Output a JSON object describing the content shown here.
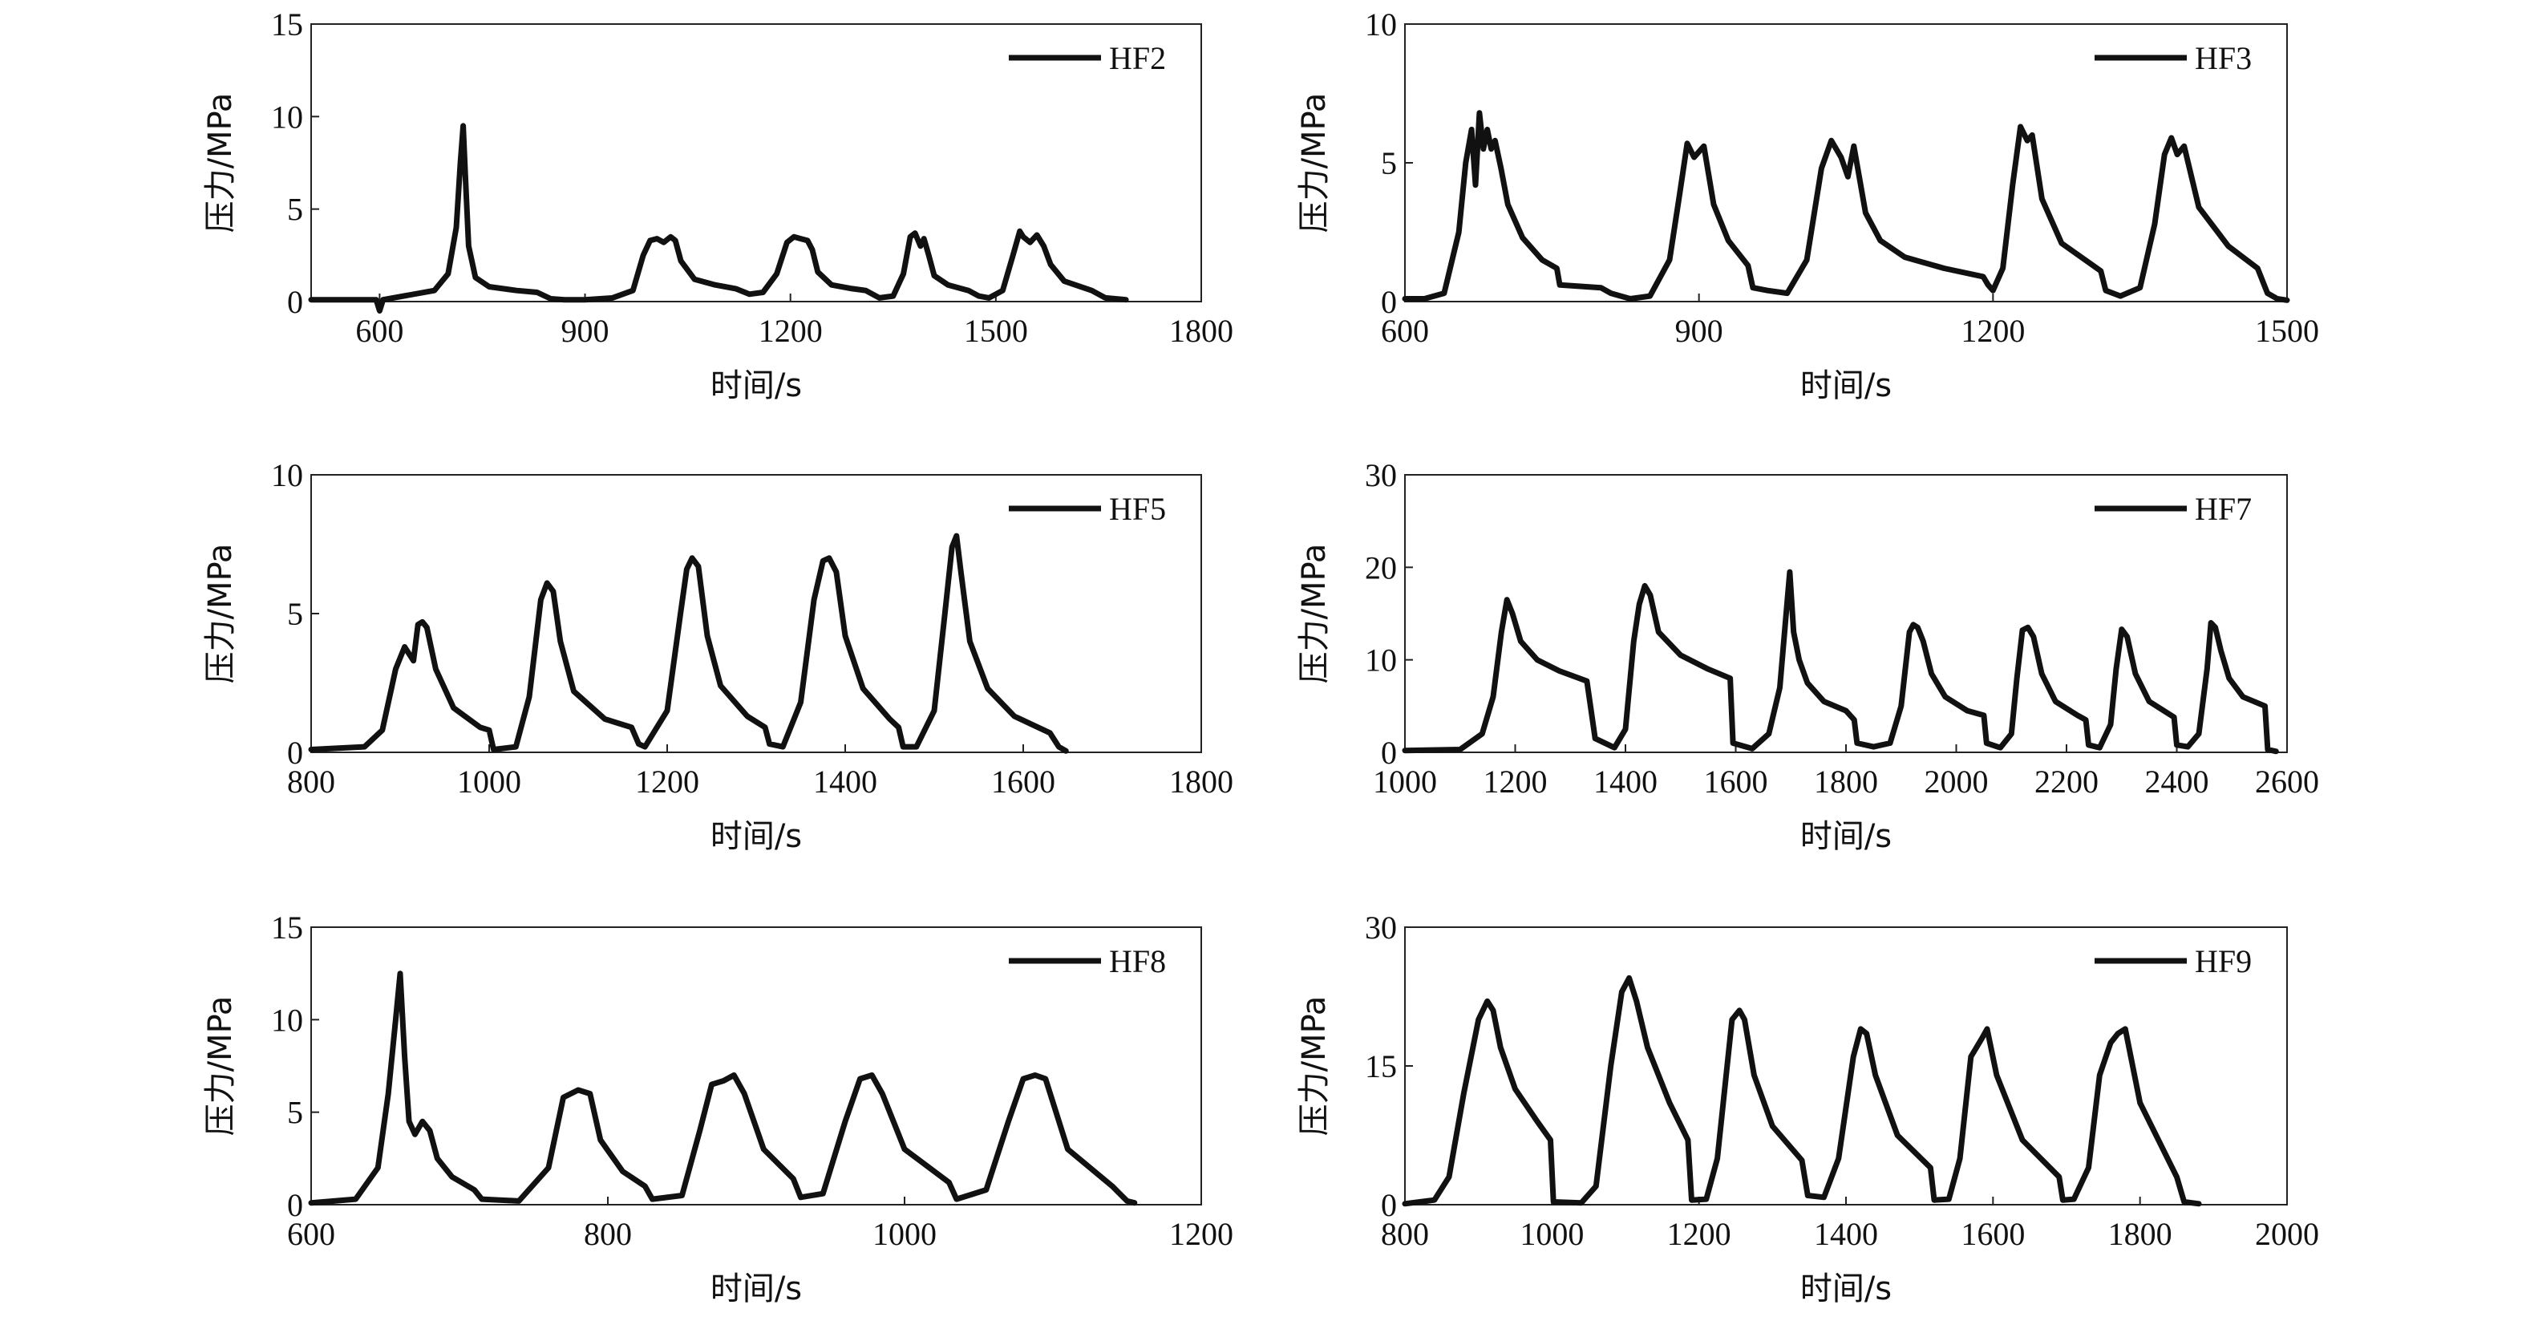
{
  "chart_data": [
    {
      "type": "line",
      "xlabel": "时间/s",
      "ylabel": "压力/MPa",
      "xlim": [
        500,
        1800
      ],
      "ylim": [
        0,
        15
      ],
      "xticks": [
        600,
        900,
        1200,
        1500,
        1800
      ],
      "yticks": [
        0,
        5,
        10,
        15
      ],
      "series": [
        {
          "name": "HF2",
          "color": "#111111",
          "x": [
            500,
            580,
            595,
            600,
            605,
            680,
            700,
            712,
            718,
            722,
            725,
            730,
            740,
            760,
            800,
            830,
            850,
            870,
            900,
            940,
            970,
            985,
            995,
            1005,
            1015,
            1025,
            1032,
            1040,
            1060,
            1090,
            1120,
            1140,
            1160,
            1180,
            1195,
            1205,
            1215,
            1225,
            1232,
            1240,
            1260,
            1290,
            1310,
            1330,
            1350,
            1365,
            1375,
            1382,
            1390,
            1395,
            1402,
            1410,
            1430,
            1460,
            1475,
            1490,
            1510,
            1525,
            1535,
            1540,
            1550,
            1560,
            1570,
            1580,
            1600,
            1640,
            1660,
            1690
          ],
          "values": [
            0.1,
            0.1,
            0.1,
            -0.5,
            0.1,
            0.6,
            1.5,
            4,
            7.5,
            9.5,
            7,
            3,
            1.3,
            0.8,
            0.6,
            0.5,
            0.15,
            0.1,
            0.1,
            0.2,
            0.6,
            2.5,
            3.3,
            3.4,
            3.2,
            3.5,
            3.3,
            2.2,
            1.2,
            0.9,
            0.7,
            0.4,
            0.5,
            1.5,
            3.2,
            3.5,
            3.4,
            3.3,
            2.8,
            1.6,
            0.9,
            0.7,
            0.6,
            0.2,
            0.3,
            1.5,
            3.5,
            3.7,
            3,
            3.4,
            2.5,
            1.4,
            0.9,
            0.6,
            0.3,
            0.2,
            0.6,
            2.5,
            3.8,
            3.5,
            3.2,
            3.6,
            3,
            2,
            1.1,
            0.6,
            0.2,
            0.1
          ]
        }
      ]
    },
    {
      "type": "line",
      "xlabel": "时间/s",
      "ylabel": "压力/MPa",
      "xlim": [
        600,
        1500
      ],
      "ylim": [
        0,
        10
      ],
      "xticks": [
        600,
        900,
        1200,
        1500
      ],
      "yticks": [
        0,
        5,
        10
      ],
      "series": [
        {
          "name": "HF3",
          "color": "#111111",
          "x": [
            600,
            620,
            640,
            655,
            662,
            668,
            672,
            676,
            680,
            684,
            688,
            692,
            698,
            705,
            720,
            740,
            755,
            758,
            800,
            810,
            830,
            850,
            870,
            880,
            888,
            895,
            905,
            915,
            930,
            950,
            955,
            970,
            990,
            1010,
            1025,
            1035,
            1045,
            1052,
            1058,
            1063,
            1070,
            1085,
            1110,
            1150,
            1190,
            1195,
            1200,
            1210,
            1220,
            1228,
            1235,
            1240,
            1250,
            1270,
            1310,
            1315,
            1330,
            1350,
            1365,
            1375,
            1382,
            1388,
            1395,
            1410,
            1440,
            1470,
            1480,
            1490,
            1500
          ],
          "values": [
            0.1,
            0.1,
            0.3,
            2.5,
            5,
            6.2,
            4.2,
            6.8,
            5.5,
            6.2,
            5.5,
            5.8,
            4.8,
            3.5,
            2.3,
            1.5,
            1.2,
            0.6,
            0.5,
            0.3,
            0.1,
            0.2,
            1.5,
            3.8,
            5.7,
            5.2,
            5.6,
            3.5,
            2.2,
            1.3,
            0.5,
            0.4,
            0.3,
            1.5,
            4.8,
            5.8,
            5.2,
            4.5,
            5.6,
            4.6,
            3.2,
            2.2,
            1.6,
            1.2,
            0.9,
            0.6,
            0.4,
            1.2,
            4.2,
            6.3,
            5.8,
            6,
            3.7,
            2.1,
            1.1,
            0.4,
            0.2,
            0.5,
            2.8,
            5.3,
            5.9,
            5.3,
            5.6,
            3.4,
            2,
            1.2,
            0.3,
            0.1,
            0.05
          ]
        }
      ]
    },
    {
      "type": "line",
      "xlabel": "时间/s",
      "ylabel": "压力/MPa",
      "xlim": [
        800,
        1800
      ],
      "ylim": [
        0,
        10
      ],
      "xticks": [
        800,
        1000,
        1200,
        1400,
        1600,
        1800
      ],
      "yticks": [
        0,
        5,
        10
      ],
      "series": [
        {
          "name": "HF5",
          "color": "#111111",
          "x": [
            800,
            860,
            880,
            895,
            905,
            915,
            920,
            925,
            930,
            940,
            960,
            990,
            1000,
            1005,
            1030,
            1045,
            1058,
            1065,
            1072,
            1080,
            1095,
            1130,
            1160,
            1168,
            1175,
            1200,
            1215,
            1222,
            1228,
            1235,
            1245,
            1260,
            1290,
            1310,
            1315,
            1330,
            1350,
            1365,
            1375,
            1382,
            1390,
            1400,
            1420,
            1450,
            1460,
            1465,
            1480,
            1500,
            1512,
            1520,
            1525,
            1530,
            1540,
            1560,
            1590,
            1630,
            1640,
            1648
          ],
          "values": [
            0.1,
            0.2,
            0.8,
            3,
            3.8,
            3.3,
            4.6,
            4.7,
            4.5,
            3,
            1.6,
            0.9,
            0.8,
            0.1,
            0.2,
            2,
            5.5,
            6.1,
            5.8,
            4,
            2.2,
            1.2,
            0.9,
            0.3,
            0.2,
            1.5,
            5,
            6.6,
            7,
            6.7,
            4.2,
            2.4,
            1.3,
            0.9,
            0.3,
            0.2,
            1.8,
            5.5,
            6.9,
            7,
            6.5,
            4.2,
            2.3,
            1.2,
            0.9,
            0.2,
            0.2,
            1.5,
            5,
            7.4,
            7.8,
            6.5,
            4,
            2.3,
            1.3,
            0.7,
            0.2,
            0.05
          ]
        }
      ]
    },
    {
      "type": "line",
      "xlabel": "时间/s",
      "ylabel": "压力/MPa",
      "xlim": [
        1000,
        2600
      ],
      "ylim": [
        0,
        30
      ],
      "xticks": [
        1000,
        1200,
        1400,
        1600,
        1800,
        2000,
        2200,
        2400,
        2600
      ],
      "yticks": [
        0,
        10,
        20,
        30
      ],
      "series": [
        {
          "name": "HF7",
          "color": "#111111",
          "x": [
            1000,
            1100,
            1140,
            1160,
            1175,
            1185,
            1195,
            1210,
            1240,
            1280,
            1330,
            1345,
            1380,
            1400,
            1415,
            1425,
            1435,
            1445,
            1460,
            1500,
            1550,
            1590,
            1595,
            1630,
            1660,
            1680,
            1690,
            1698,
            1705,
            1715,
            1730,
            1760,
            1800,
            1815,
            1820,
            1850,
            1880,
            1900,
            1915,
            1922,
            1930,
            1940,
            1955,
            1980,
            2020,
            2050,
            2055,
            2080,
            2100,
            2110,
            2120,
            2130,
            2140,
            2155,
            2180,
            2220,
            2235,
            2240,
            2260,
            2280,
            2290,
            2300,
            2310,
            2325,
            2350,
            2395,
            2400,
            2420,
            2440,
            2455,
            2462,
            2470,
            2480,
            2495,
            2520,
            2560,
            2565,
            2580
          ],
          "values": [
            0.2,
            0.3,
            2,
            6,
            13,
            16.5,
            15,
            12,
            10,
            8.8,
            7.7,
            1.5,
            0.5,
            2.5,
            12,
            16,
            18,
            17,
            13,
            10.5,
            9,
            8,
            1,
            0.4,
            2,
            7,
            14,
            19.5,
            13,
            10,
            7.5,
            5.5,
            4.5,
            3.5,
            1,
            0.6,
            1,
            5,
            13,
            13.8,
            13.5,
            12,
            8.5,
            6,
            4.5,
            4,
            1,
            0.5,
            2,
            8,
            13.2,
            13.5,
            12.5,
            8.5,
            5.5,
            4,
            3.5,
            0.8,
            0.5,
            3,
            9,
            13.3,
            12.5,
            8.5,
            5.5,
            3.8,
            0.8,
            0.6,
            2,
            9,
            14,
            13.5,
            11,
            8,
            6,
            5,
            0.3,
            0.1
          ]
        }
      ]
    },
    {
      "type": "line",
      "xlabel": "时间/s",
      "ylabel": "压力/MPa",
      "xlim": [
        600,
        1200
      ],
      "ylim": [
        0,
        15
      ],
      "xticks": [
        600,
        800,
        1000,
        1200
      ],
      "yticks": [
        0,
        5,
        10,
        15
      ],
      "series": [
        {
          "name": "HF8",
          "color": "#111111",
          "x": [
            600,
            630,
            645,
            652,
            657,
            660,
            663,
            666,
            670,
            675,
            680,
            685,
            695,
            710,
            715,
            740,
            760,
            770,
            780,
            788,
            795,
            810,
            825,
            830,
            850,
            862,
            870,
            878,
            885,
            892,
            905,
            925,
            930,
            945,
            960,
            970,
            978,
            985,
            1000,
            1030,
            1035,
            1055,
            1070,
            1080,
            1088,
            1095,
            1110,
            1140,
            1150,
            1155
          ],
          "values": [
            0.1,
            0.3,
            2,
            6,
            10,
            12.5,
            8,
            4.5,
            3.8,
            4.5,
            4,
            2.5,
            1.5,
            0.8,
            0.3,
            0.2,
            2,
            5.8,
            6.2,
            6,
            3.5,
            1.8,
            1,
            0.3,
            0.5,
            4,
            6.5,
            6.7,
            7,
            6,
            3,
            1.4,
            0.4,
            0.6,
            4.5,
            6.8,
            7,
            6,
            3,
            1.2,
            0.3,
            0.8,
            4.5,
            6.8,
            7,
            6.8,
            3,
            1,
            0.2,
            0.1
          ]
        }
      ]
    },
    {
      "type": "line",
      "xlabel": "时间/s",
      "ylabel": "压力/MPa",
      "xlim": [
        800,
        2000
      ],
      "ylim": [
        0,
        30
      ],
      "xticks": [
        800,
        1000,
        1200,
        1400,
        1600,
        1800,
        2000
      ],
      "yticks": [
        0,
        15,
        30
      ],
      "series": [
        {
          "name": "HF9",
          "color": "#111111",
          "x": [
            800,
            840,
            860,
            880,
            900,
            912,
            920,
            930,
            950,
            980,
            998,
            1002,
            1040,
            1060,
            1080,
            1095,
            1105,
            1115,
            1130,
            1160,
            1185,
            1190,
            1210,
            1225,
            1245,
            1255,
            1262,
            1275,
            1300,
            1340,
            1348,
            1370,
            1390,
            1410,
            1420,
            1428,
            1440,
            1470,
            1515,
            1520,
            1540,
            1555,
            1570,
            1585,
            1592,
            1605,
            1640,
            1690,
            1695,
            1710,
            1730,
            1745,
            1760,
            1770,
            1780,
            1800,
            1850,
            1860,
            1880
          ],
          "values": [
            0.1,
            0.5,
            3,
            12,
            20,
            22,
            21,
            17,
            12.5,
            9,
            7,
            0.3,
            0.2,
            2,
            15,
            23,
            24.5,
            22,
            17,
            11,
            7,
            0.5,
            0.6,
            5,
            20,
            21,
            20,
            14,
            8.5,
            4.8,
            1,
            0.8,
            5,
            16,
            19,
            18.5,
            14,
            7.5,
            4,
            0.5,
            0.6,
            5,
            16,
            18,
            19,
            14,
            7,
            3,
            0.5,
            0.6,
            4,
            14,
            17.5,
            18.5,
            19,
            11,
            3,
            0.3,
            0.1
          ]
        }
      ]
    }
  ]
}
